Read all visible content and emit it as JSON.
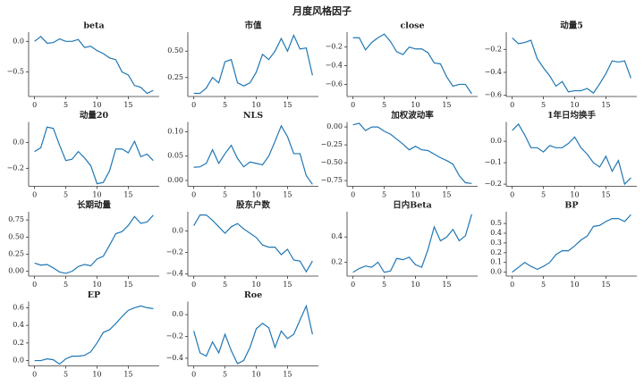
{
  "title": "月度风格因子",
  "chart_data": [
    {
      "type": "line",
      "title": "beta",
      "color": "#1f77b4",
      "x": [
        0,
        1,
        2,
        3,
        4,
        5,
        6,
        7,
        8,
        9,
        10,
        11,
        12,
        13,
        14,
        15,
        16,
        17,
        18,
        19
      ],
      "xlim": [
        -0.95,
        19.95
      ],
      "xticks": [
        0,
        5,
        10,
        15
      ],
      "values": [
        0.0,
        0.08,
        -0.03,
        -0.02,
        0.04,
        0.0,
        0.0,
        0.03,
        -0.1,
        -0.08,
        -0.15,
        -0.2,
        -0.27,
        -0.3,
        -0.5,
        -0.55,
        -0.72,
        -0.75,
        -0.85,
        -0.8
      ],
      "ylim": [
        -0.9,
        0.15
      ],
      "yticks": [
        {
          "value": 0,
          "label": "0.0"
        },
        {
          "value": -0.5,
          "label": "−0.5"
        }
      ]
    },
    {
      "type": "line",
      "title": "市值",
      "color": "#1f77b4",
      "x": [
        0,
        1,
        2,
        3,
        4,
        5,
        6,
        7,
        8,
        9,
        10,
        11,
        12,
        13,
        14,
        15,
        16,
        17,
        18,
        19
      ],
      "xlim": [
        -0.95,
        19.95
      ],
      "xticks": [
        0,
        5,
        10,
        15
      ],
      "values": [
        0.1,
        0.1,
        0.15,
        0.25,
        0.2,
        0.4,
        0.42,
        0.2,
        0.17,
        0.2,
        0.3,
        0.47,
        0.42,
        0.5,
        0.62,
        0.5,
        0.65,
        0.52,
        0.53,
        0.27
      ],
      "ylim": [
        0.07,
        0.68
      ],
      "yticks": [
        0.25,
        {
          "value": 0.5,
          "label": "0.50"
        }
      ]
    },
    {
      "type": "line",
      "title": "close",
      "color": "#1f77b4",
      "x": [
        0,
        1,
        2,
        3,
        4,
        5,
        6,
        7,
        8,
        9,
        10,
        11,
        12,
        13,
        14,
        15,
        16,
        17,
        18,
        19
      ],
      "xlim": [
        -0.95,
        19.95
      ],
      "xticks": [
        0,
        5,
        10,
        15
      ],
      "values": [
        -0.1,
        -0.1,
        -0.23,
        -0.15,
        -0.1,
        -0.06,
        -0.14,
        -0.25,
        -0.28,
        -0.2,
        -0.22,
        -0.22,
        -0.26,
        -0.37,
        -0.38,
        -0.52,
        -0.62,
        -0.6,
        -0.6,
        -0.7
      ],
      "ylim": [
        -0.73,
        -0.04
      ],
      "yticks": [
        {
          "value": -0.2,
          "label": "−0.2"
        },
        {
          "value": -0.4,
          "label": "−0.4"
        },
        {
          "value": -0.6,
          "label": "−0.6"
        }
      ]
    },
    {
      "type": "line",
      "title": "动量5",
      "color": "#1f77b4",
      "x": [
        0,
        1,
        2,
        3,
        4,
        5,
        6,
        7,
        8,
        9,
        10,
        11,
        12,
        13,
        14,
        15,
        16,
        17,
        18,
        19
      ],
      "xlim": [
        -0.95,
        19.95
      ],
      "xticks": [
        0,
        5,
        10,
        15
      ],
      "values": [
        -0.1,
        -0.15,
        -0.14,
        -0.12,
        -0.28,
        -0.36,
        -0.43,
        -0.52,
        -0.48,
        -0.57,
        -0.56,
        -0.56,
        -0.54,
        -0.58,
        -0.5,
        -0.41,
        -0.3,
        -0.31,
        -0.3,
        -0.45
      ],
      "ylim": [
        -0.61,
        -0.05
      ],
      "yticks": [
        {
          "value": -0.2,
          "label": "−0.2"
        },
        {
          "value": -0.4,
          "label": "−0.4"
        },
        {
          "value": -0.6,
          "label": "−0.6"
        }
      ]
    },
    {
      "type": "line",
      "title": "动量20",
      "color": "#1f77b4",
      "x": [
        0,
        1,
        2,
        3,
        4,
        5,
        6,
        7,
        8,
        9,
        10,
        11,
        12,
        13,
        14,
        15,
        16,
        17,
        18,
        19
      ],
      "xlim": [
        -0.95,
        19.95
      ],
      "xticks": [
        0,
        5,
        10,
        15
      ],
      "values": [
        -0.07,
        -0.04,
        0.12,
        0.11,
        -0.02,
        -0.14,
        -0.13,
        -0.07,
        -0.12,
        -0.18,
        -0.32,
        -0.31,
        -0.22,
        -0.05,
        -0.05,
        -0.08,
        0.01,
        -0.11,
        -0.09,
        -0.14
      ],
      "ylim": [
        -0.34,
        0.16
      ],
      "yticks": [
        {
          "value": 0,
          "label": "0.0"
        },
        {
          "value": -0.2,
          "label": "−0.2"
        }
      ]
    },
    {
      "type": "line",
      "title": "NLS",
      "color": "#1f77b4",
      "x": [
        0,
        1,
        2,
        3,
        4,
        5,
        6,
        7,
        8,
        9,
        10,
        11,
        12,
        13,
        14,
        15,
        16,
        17,
        18,
        19
      ],
      "xlim": [
        -0.95,
        19.95
      ],
      "xticks": [
        0,
        5,
        10,
        15
      ],
      "values": [
        0.027,
        0.028,
        0.035,
        0.063,
        0.035,
        0.055,
        0.072,
        0.045,
        0.028,
        0.038,
        0.035,
        0.032,
        0.05,
        0.08,
        0.112,
        0.09,
        0.055,
        0.055,
        0.01,
        -0.008
      ],
      "ylim": [
        -0.012,
        0.12
      ],
      "yticks": [
        {
          "value": 0,
          "label": "0.00"
        },
        0.05,
        {
          "value": 0.1,
          "label": "0.10"
        }
      ]
    },
    {
      "type": "line",
      "title": "加权波动率",
      "color": "#1f77b4",
      "x": [
        0,
        1,
        2,
        3,
        4,
        5,
        6,
        7,
        8,
        9,
        10,
        11,
        12,
        13,
        14,
        15,
        16,
        17,
        18,
        19
      ],
      "xlim": [
        -0.95,
        19.95
      ],
      "xticks": [
        0,
        5,
        10,
        15
      ],
      "values": [
        0.03,
        0.05,
        -0.05,
        0.0,
        0.0,
        -0.06,
        -0.1,
        -0.17,
        -0.24,
        -0.32,
        -0.27,
        -0.32,
        -0.33,
        -0.38,
        -0.43,
        -0.47,
        -0.52,
        -0.68,
        -0.78,
        -0.79
      ],
      "ylim": [
        -0.83,
        0.07
      ],
      "yticks": [
        {
          "value": 0,
          "label": "0.00"
        },
        {
          "value": -0.25,
          "label": "−0.25"
        },
        {
          "value": -0.5,
          "label": "−0.50"
        },
        {
          "value": -0.75,
          "label": "−0.75"
        }
      ]
    },
    {
      "type": "line",
      "title": "1年日均换手",
      "color": "#1f77b4",
      "x": [
        0,
        1,
        2,
        3,
        4,
        5,
        6,
        7,
        8,
        9,
        10,
        11,
        12,
        13,
        14,
        15,
        16,
        17,
        18,
        19
      ],
      "xlim": [
        -0.95,
        19.95
      ],
      "xticks": [
        0,
        5,
        10,
        15
      ],
      "values": [
        0.05,
        0.08,
        0.03,
        -0.03,
        -0.03,
        -0.05,
        -0.02,
        -0.03,
        -0.03,
        -0.01,
        0.02,
        -0.03,
        -0.06,
        -0.1,
        -0.12,
        -0.07,
        -0.14,
        -0.09,
        -0.2,
        -0.17
      ],
      "ylim": [
        -0.21,
        0.09
      ],
      "yticks": [
        {
          "value": 0,
          "label": "0.0"
        },
        {
          "value": -0.1,
          "label": "−0.1"
        },
        {
          "value": -0.2,
          "label": "−0.2"
        }
      ]
    },
    {
      "type": "line",
      "title": "长期动量",
      "color": "#1f77b4",
      "x": [
        0,
        1,
        2,
        3,
        4,
        5,
        6,
        7,
        8,
        9,
        10,
        11,
        12,
        13,
        14,
        15,
        16,
        17,
        18,
        19
      ],
      "xlim": [
        -0.95,
        19.95
      ],
      "xticks": [
        0,
        5,
        10,
        15
      ],
      "values": [
        0.12,
        0.09,
        0.1,
        0.05,
        -0.01,
        -0.03,
        0.0,
        0.07,
        0.1,
        0.08,
        0.18,
        0.22,
        0.38,
        0.55,
        0.58,
        0.67,
        0.8,
        0.7,
        0.72,
        0.82
      ],
      "ylim": [
        -0.07,
        0.87
      ],
      "yticks": [
        {
          "value": 0,
          "label": "0.00"
        },
        0.25,
        {
          "value": 0.5,
          "label": "0.50"
        },
        0.75
      ]
    },
    {
      "type": "line",
      "title": "股东户数",
      "color": "#1f77b4",
      "x": [
        0,
        1,
        2,
        3,
        4,
        5,
        6,
        7,
        8,
        9,
        10,
        11,
        12,
        13,
        14,
        15,
        16,
        17,
        18,
        19
      ],
      "xlim": [
        -0.95,
        19.95
      ],
      "xticks": [
        0,
        5,
        10,
        15
      ],
      "values": [
        0.05,
        0.15,
        0.15,
        0.1,
        0.04,
        -0.02,
        0.04,
        0.07,
        0.02,
        -0.02,
        -0.06,
        -0.13,
        -0.15,
        -0.15,
        -0.22,
        -0.17,
        -0.27,
        -0.28,
        -0.38,
        -0.28
      ],
      "ylim": [
        -0.42,
        0.18
      ],
      "yticks": [
        {
          "value": 0,
          "label": "0.0"
        },
        {
          "value": -0.2,
          "label": "−0.2"
        },
        {
          "value": -0.4,
          "label": "−0.4"
        }
      ]
    },
    {
      "type": "line",
      "title": "日内Beta",
      "color": "#1f77b4",
      "x": [
        0,
        1,
        2,
        3,
        4,
        5,
        6,
        7,
        8,
        9,
        10,
        11,
        12,
        13,
        14,
        15,
        16,
        17,
        18,
        19
      ],
      "xlim": [
        -0.95,
        19.95
      ],
      "xticks": [
        0,
        5,
        10,
        15
      ],
      "values": [
        0.12,
        0.15,
        0.17,
        0.16,
        0.2,
        0.12,
        0.13,
        0.23,
        0.22,
        0.24,
        0.18,
        0.16,
        0.3,
        0.48,
        0.37,
        0.4,
        0.46,
        0.37,
        0.41,
        0.58
      ],
      "ylim": [
        0.09,
        0.6
      ],
      "yticks": [
        0.2,
        0.4
      ]
    },
    {
      "type": "line",
      "title": "BP",
      "color": "#1f77b4",
      "x": [
        0,
        1,
        2,
        3,
        4,
        5,
        6,
        7,
        8,
        9,
        10,
        11,
        12,
        13,
        14,
        15,
        16,
        17,
        18,
        19
      ],
      "xlim": [
        -0.95,
        19.95
      ],
      "xticks": [
        0,
        5,
        10,
        15
      ],
      "values": [
        0.0,
        0.05,
        0.1,
        0.06,
        0.03,
        0.06,
        0.1,
        0.18,
        0.22,
        0.22,
        0.27,
        0.33,
        0.37,
        0.47,
        0.48,
        0.52,
        0.55,
        0.55,
        0.52,
        0.59
      ],
      "ylim": [
        -0.04,
        0.62
      ],
      "yticks": [
        {
          "value": 0,
          "label": "0.0"
        },
        0.1,
        0.2,
        0.3,
        0.4,
        0.5
      ]
    },
    {
      "type": "line",
      "title": "EP",
      "color": "#1f77b4",
      "x": [
        0,
        1,
        2,
        3,
        4,
        5,
        6,
        7,
        8,
        9,
        10,
        11,
        12,
        13,
        14,
        15,
        16,
        17,
        18,
        19
      ],
      "xlim": [
        -0.95,
        19.95
      ],
      "xticks": [
        0,
        5,
        10,
        15
      ],
      "values": [
        0.0,
        0.0,
        0.02,
        0.01,
        -0.04,
        0.02,
        0.05,
        0.05,
        0.06,
        0.1,
        0.2,
        0.32,
        0.35,
        0.42,
        0.5,
        0.57,
        0.6,
        0.62,
        0.6,
        0.59
      ],
      "ylim": [
        -0.06,
        0.67
      ],
      "yticks": [
        {
          "value": 0,
          "label": "0.0"
        },
        0.2,
        0.4,
        0.6
      ]
    },
    {
      "type": "line",
      "title": "Roe",
      "color": "#1f77b4",
      "x": [
        0,
        1,
        2,
        3,
        4,
        5,
        6,
        7,
        8,
        9,
        10,
        11,
        12,
        13,
        14,
        15,
        16,
        17,
        18,
        19
      ],
      "xlim": [
        -0.95,
        19.95
      ],
      "xticks": [
        0,
        5,
        10,
        15
      ],
      "values": [
        -0.15,
        -0.35,
        -0.38,
        -0.25,
        -0.35,
        -0.18,
        -0.33,
        -0.45,
        -0.42,
        -0.3,
        -0.13,
        -0.08,
        -0.12,
        -0.3,
        -0.15,
        -0.22,
        -0.18,
        -0.05,
        0.08,
        -0.18
      ],
      "ylim": [
        -0.47,
        0.12
      ],
      "yticks": [
        {
          "value": 0,
          "label": "0.0"
        },
        {
          "value": -0.2,
          "label": "−0.2"
        },
        {
          "value": -0.4,
          "label": "−0.4"
        }
      ]
    }
  ]
}
